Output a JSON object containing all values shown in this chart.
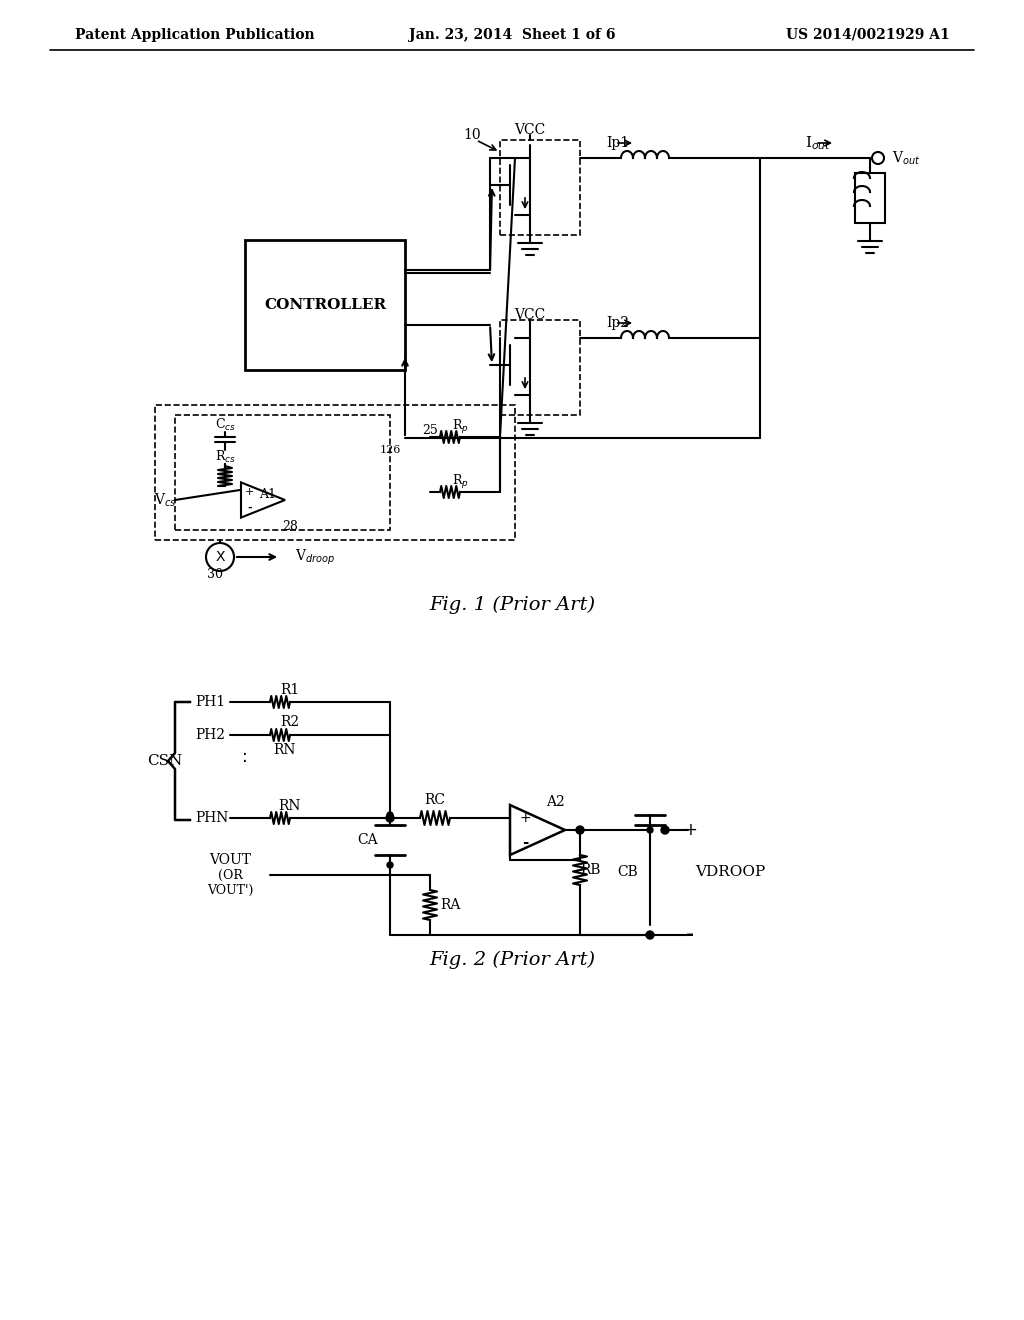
{
  "background_color": "#ffffff",
  "header_left": "Patent Application Publication",
  "header_center": "Jan. 23, 2014  Sheet 1 of 6",
  "header_right": "US 2014/0021929 A1",
  "fig1_caption": "Fig. 1 (Prior Art)",
  "fig2_caption": "Fig. 2 (Prior Art)",
  "line_color": "#000000",
  "text_color": "#000000"
}
